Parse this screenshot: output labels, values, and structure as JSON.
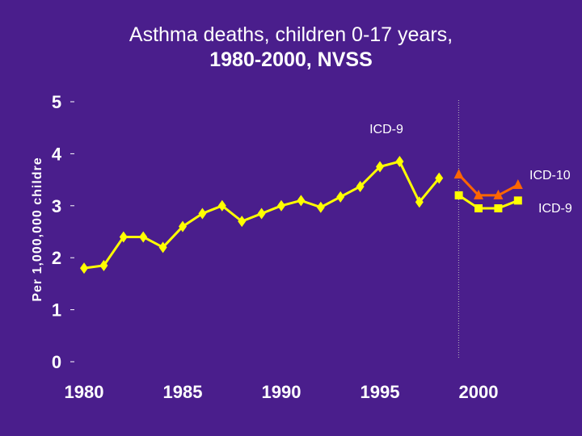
{
  "colors": {
    "background": "#4a1e8c",
    "text": "#ffffff",
    "series_main": "#ffff00",
    "series_icd10": "#ff6600",
    "series_icd9_comparison": "#ffff00",
    "divider": "#b8b8b8"
  },
  "chart_data": {
    "type": "line",
    "title_line1": "Asthma deaths, children 0-17 years,",
    "title_line2": "1980-2000, NVSS",
    "ylabel": "Per 1,000,000 childre",
    "xlabel": "",
    "ylim": [
      0,
      5
    ],
    "xlim": [
      1979.5,
      2002.5
    ],
    "yticks": [
      0,
      1,
      2,
      3,
      4,
      5
    ],
    "xticks": [
      1980,
      1985,
      1990,
      1995,
      2000
    ],
    "grid": false,
    "divider_x": 1998.5,
    "series": [
      {
        "name": "ICD-9",
        "marker": "diamond",
        "color": "#ffff00",
        "x": [
          1980,
          1981,
          1982,
          1983,
          1984,
          1985,
          1986,
          1987,
          1988,
          1989,
          1990,
          1991,
          1992,
          1993,
          1994,
          1995,
          1996,
          1997,
          1998
        ],
        "y": [
          1.8,
          1.85,
          2.4,
          2.4,
          2.2,
          2.6,
          2.85,
          3.0,
          2.7,
          2.85,
          3.0,
          3.1,
          2.97,
          3.17,
          3.37,
          3.75,
          3.85,
          3.07,
          3.53
        ]
      },
      {
        "name": "ICD-10",
        "marker": "triangle",
        "color": "#ff6600",
        "x": [
          1999,
          2000,
          2001,
          2002
        ],
        "y": [
          3.6,
          3.2,
          3.2,
          3.4
        ]
      },
      {
        "name": "ICD-9",
        "marker": "square",
        "color": "#ffff00",
        "x": [
          1999,
          2000,
          2001,
          2002
        ],
        "y": [
          3.2,
          2.95,
          2.95,
          3.1
        ]
      }
    ],
    "annotations": [
      {
        "text": "ICD-9",
        "anchor": "above main series near 1996"
      },
      {
        "text": "ICD-10",
        "anchor": "right of ICD-10 series end"
      },
      {
        "text": "ICD-9",
        "anchor": "right of comparison series end"
      }
    ]
  }
}
